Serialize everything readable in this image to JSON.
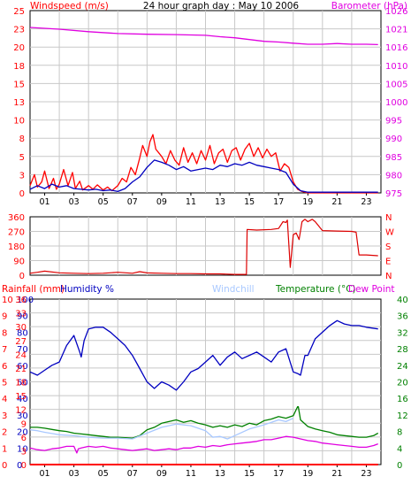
{
  "chart_data": [
    {
      "id": "wind-baro",
      "type": "line",
      "title": "24 hour graph day : May 10 2006",
      "ylabel_left": "Windspeed (m/s)",
      "ylabel_right": "Barometer (hPa)",
      "left_ticks": [
        "0",
        "3",
        "5",
        "8",
        "10",
        "13",
        "15",
        "18",
        "20",
        "23",
        "25"
      ],
      "left_range": [
        0,
        25
      ],
      "right_ticks": [
        "975",
        "980",
        "985",
        "990",
        "995",
        "1000",
        "1005",
        "1010",
        "1016",
        "1021",
        "1026"
      ],
      "right_range": [
        975,
        1026
      ],
      "x_ticks": [
        "01",
        "03",
        "05",
        "07",
        "09",
        "11",
        "13",
        "15",
        "17",
        "19",
        "21",
        "23"
      ],
      "x_range": [
        0,
        24
      ],
      "grid": true,
      "series": [
        {
          "name": "Barometer",
          "axis": "right",
          "color": "#e000e0",
          "x": [
            0,
            2,
            4,
            6,
            8,
            10,
            12,
            13,
            14,
            15,
            16,
            17,
            18,
            19,
            20,
            21,
            22,
            23,
            23.8
          ],
          "y": [
            1021.3,
            1020.8,
            1020.1,
            1019.6,
            1019.4,
            1019.3,
            1019.1,
            1018.7,
            1018.4,
            1017.9,
            1017.4,
            1017.2,
            1016.9,
            1016.6,
            1016.6,
            1016.8,
            1016.6,
            1016.6,
            1016.5
          ]
        },
        {
          "name": "Wind gust",
          "axis": "left",
          "color": "#ff0000",
          "x": [
            0,
            0.3,
            0.5,
            0.8,
            1.0,
            1.3,
            1.6,
            1.8,
            2.0,
            2.3,
            2.6,
            2.9,
            3.1,
            3.4,
            3.6,
            4.0,
            4.3,
            4.6,
            5.0,
            5.3,
            5.6,
            6.0,
            6.3,
            6.6,
            6.9,
            7.2,
            7.5,
            7.7,
            8.0,
            8.2,
            8.4,
            8.6,
            8.8,
            9.0,
            9.3,
            9.6,
            9.9,
            10.2,
            10.5,
            10.8,
            11.1,
            11.4,
            11.7,
            12.0,
            12.3,
            12.6,
            12.9,
            13.2,
            13.5,
            13.8,
            14.1,
            14.4,
            14.7,
            15.0,
            15.3,
            15.6,
            15.9,
            16.2,
            16.5,
            16.8,
            17.1,
            17.4,
            17.7,
            18.0,
            18.3,
            18.6,
            19.0,
            20,
            21,
            22,
            23,
            23.8
          ],
          "y": [
            1.0,
            2.5,
            0.8,
            1.5,
            3.0,
            0.6,
            2.0,
            0.5,
            1.2,
            3.2,
            1.0,
            2.8,
            0.6,
            1.6,
            0.4,
            1.0,
            0.5,
            1.1,
            0.4,
            0.8,
            0.3,
            1.0,
            2.0,
            1.5,
            3.5,
            2.5,
            4.8,
            6.5,
            5.0,
            7.0,
            8.0,
            6.0,
            5.5,
            5.0,
            4.0,
            5.8,
            4.5,
            3.8,
            6.2,
            4.2,
            5.5,
            4.0,
            5.8,
            4.5,
            6.5,
            4.0,
            5.5,
            6.0,
            4.2,
            5.8,
            6.2,
            4.5,
            6.0,
            6.8,
            5.0,
            6.2,
            4.8,
            6.0,
            5.0,
            5.5,
            3.0,
            4.0,
            3.5,
            1.5,
            0.5,
            0.2,
            0,
            0,
            0,
            0,
            0,
            0
          ]
        },
        {
          "name": "Wind speed",
          "axis": "left",
          "color": "#0000c0",
          "x": [
            0,
            0.5,
            1.0,
            1.5,
            2.0,
            2.5,
            3.0,
            3.5,
            4.0,
            4.5,
            5.0,
            5.5,
            6.0,
            6.5,
            7.0,
            7.5,
            8.0,
            8.5,
            9.0,
            9.5,
            10.0,
            10.5,
            11.0,
            11.5,
            12.0,
            12.5,
            13.0,
            13.5,
            14.0,
            14.5,
            15.0,
            15.5,
            16.0,
            16.5,
            17.0,
            17.5,
            18.0,
            18.5,
            19.0,
            20,
            21,
            22,
            23,
            23.8
          ],
          "y": [
            0.5,
            1.0,
            0.6,
            1.2,
            0.8,
            1.0,
            0.6,
            0.5,
            0.4,
            0.5,
            0.3,
            0.4,
            0.2,
            0.6,
            1.5,
            2.2,
            3.5,
            4.5,
            4.2,
            3.8,
            3.2,
            3.6,
            3.0,
            3.2,
            3.4,
            3.2,
            3.8,
            3.6,
            4.0,
            3.8,
            4.2,
            3.8,
            3.6,
            3.4,
            3.2,
            2.8,
            1.2,
            0.3,
            0.1,
            0.1,
            0.1,
            0.1,
            0.1,
            0.1
          ]
        }
      ]
    },
    {
      "id": "wind-dir",
      "type": "line",
      "left_ticks": [
        "0",
        "90",
        "180",
        "270",
        "360"
      ],
      "left_range": [
        0,
        360
      ],
      "right_ticks": [
        "N",
        "E",
        "S",
        "W",
        "N"
      ],
      "grid": true,
      "series": [
        {
          "name": "Wind direction",
          "axis": "left",
          "color": "#dd0000",
          "x": [
            0,
            0.5,
            1.0,
            2.0,
            3.0,
            4.0,
            5.0,
            6.0,
            7.0,
            7.5,
            8.0,
            9.0,
            10.0,
            11.0,
            12.0,
            13.0,
            14.0,
            14.8,
            14.85,
            15.5,
            16.5,
            17.0,
            17.3,
            17.5,
            17.6,
            17.8,
            18.0,
            18.2,
            18.4,
            18.6,
            18.8,
            19.0,
            19.3,
            19.5,
            20.0,
            21.0,
            22.0,
            22.3,
            22.5,
            23.0,
            23.8
          ],
          "y": [
            12,
            18,
            25,
            15,
            12,
            10,
            12,
            18,
            12,
            22,
            14,
            12,
            10,
            10,
            8,
            8,
            5,
            5,
            282,
            278,
            282,
            288,
            330,
            325,
            340,
            48,
            250,
            260,
            220,
            330,
            345,
            330,
            345,
            330,
            275,
            272,
            270,
            265,
            125,
            125,
            120
          ]
        }
      ]
    },
    {
      "id": "temp-hum",
      "type": "line",
      "legend": [
        "Rainfall (mm)",
        "Humidity %",
        "Windchill",
        "Temperature (°C)",
        "Dew Point"
      ],
      "rain_ticks": [
        "0",
        "1",
        "2",
        "3",
        "4",
        "5",
        "6",
        "7",
        "8",
        "9",
        "10"
      ],
      "rain_range": [
        0,
        10
      ],
      "humidity_ticks": [
        "0",
        "10",
        "20",
        "30",
        "40",
        "50",
        "60",
        "70",
        "80",
        "90",
        "100"
      ],
      "humidity_range": [
        0,
        100
      ],
      "left_ticks": [
        "0",
        "3",
        "6",
        "9",
        "12",
        "15",
        "18",
        "21",
        "24",
        "27",
        "30",
        "33",
        "36"
      ],
      "left_range": [
        0,
        36
      ],
      "right_ticks": [
        "0",
        "4",
        "8",
        "12",
        "16",
        "20",
        "24",
        "28",
        "32",
        "36",
        "40"
      ],
      "right_range": [
        0,
        40
      ],
      "grid": true,
      "series": [
        {
          "name": "Humidity %",
          "axis": "humidity",
          "color": "#0000c0",
          "x": [
            0,
            0.5,
            1.0,
            1.5,
            2.0,
            2.5,
            3.0,
            3.4,
            3.5,
            3.7,
            4.0,
            4.5,
            5.0,
            5.5,
            6.0,
            6.5,
            7.0,
            7.5,
            8.0,
            8.5,
            9.0,
            9.5,
            10.0,
            10.5,
            11.0,
            11.5,
            12.0,
            12.5,
            13.0,
            13.5,
            14.0,
            14.5,
            15.0,
            15.5,
            16.0,
            16.5,
            17.0,
            17.5,
            18.0,
            18.3,
            18.5,
            18.8,
            19.0,
            19.5,
            20.0,
            20.5,
            21.0,
            21.5,
            22.0,
            22.5,
            23.0,
            23.8
          ],
          "y": [
            56,
            54,
            57,
            60,
            62,
            72,
            78,
            68,
            65,
            75,
            82,
            83,
            83,
            80,
            76,
            72,
            66,
            58,
            50,
            46,
            50,
            48,
            45,
            50,
            56,
            58,
            62,
            66,
            60,
            65,
            68,
            64,
            66,
            68,
            65,
            62,
            68,
            70,
            56,
            55,
            54,
            66,
            66,
            76,
            80,
            84,
            87,
            85,
            84,
            84,
            83,
            82
          ]
        },
        {
          "name": "Temperature (°C)",
          "axis": "right",
          "color": "#008000",
          "x": [
            0,
            0.5,
            1.0,
            1.5,
            2.0,
            2.5,
            3.0,
            3.5,
            4.0,
            4.5,
            5.0,
            5.5,
            6.0,
            6.5,
            7.0,
            7.5,
            8.0,
            8.5,
            9.0,
            9.5,
            10.0,
            10.5,
            11.0,
            11.5,
            12.0,
            12.5,
            13.0,
            13.5,
            14.0,
            14.5,
            15.0,
            15.5,
            16.0,
            16.5,
            17.0,
            17.5,
            18.0,
            18.3,
            18.35,
            18.5,
            19.0,
            19.5,
            20.0,
            20.5,
            21.0,
            21.5,
            22.0,
            22.5,
            23.0,
            23.5,
            23.8
          ],
          "y": [
            9,
            9,
            8.8,
            8.5,
            8.2,
            8,
            7.6,
            7.4,
            7.2,
            7,
            6.8,
            6.6,
            6.6,
            6.5,
            6.4,
            7,
            8.4,
            9,
            10,
            10.4,
            10.8,
            10.2,
            10.6,
            10,
            9.6,
            9,
            9.4,
            9,
            9.6,
            9.2,
            10,
            9.6,
            10.6,
            11,
            11.6,
            11.2,
            11.8,
            14,
            14,
            10.8,
            9.2,
            8.6,
            8.2,
            7.8,
            7.2,
            7,
            6.8,
            6.6,
            6.6,
            7,
            7.6
          ]
        },
        {
          "name": "Windchill",
          "axis": "right",
          "color": "#a8c8ff",
          "x": [
            0,
            0.5,
            1.0,
            1.5,
            2.0,
            3.0,
            4.0,
            5.0,
            6.0,
            7.0,
            8.0,
            9.0,
            10.0,
            11.0,
            12.0,
            12.5,
            13.0,
            13.5,
            14.0,
            15.0,
            16.0,
            17.0,
            17.5,
            18.0
          ],
          "y": [
            8.4,
            8.2,
            7.8,
            7.5,
            7.2,
            7,
            6.6,
            6.4,
            6.4,
            6.2,
            7.6,
            9,
            9.8,
            9.4,
            8.2,
            6.6,
            6.8,
            6.2,
            7,
            8.6,
            9.6,
            10.8,
            10.4,
            11.2
          ]
        },
        {
          "name": "Dew Point",
          "axis": "right",
          "color": "#e000e0",
          "x": [
            0,
            0.5,
            1.0,
            1.5,
            2.0,
            2.5,
            3.0,
            3.2,
            3.3,
            3.5,
            4.0,
            4.5,
            5.0,
            5.5,
            6.0,
            6.5,
            7.0,
            7.5,
            8.0,
            8.5,
            9.0,
            9.5,
            10.0,
            10.5,
            11.0,
            11.5,
            12.0,
            12.5,
            13.0,
            13.5,
            14.0,
            14.5,
            15.0,
            15.5,
            16.0,
            16.5,
            17.0,
            17.5,
            18.0,
            18.5,
            19.0,
            19.5,
            20.0,
            20.5,
            21.0,
            21.5,
            22.0,
            22.5,
            23.0,
            23.5,
            23.8
          ],
          "y": [
            4,
            3.6,
            3.4,
            3.8,
            4,
            4.4,
            4.4,
            2.8,
            3.8,
            4,
            4.4,
            4.2,
            4.4,
            4,
            3.8,
            3.6,
            3.4,
            3.6,
            3.8,
            3.4,
            3.6,
            3.8,
            3.6,
            4,
            4,
            4.4,
            4.2,
            4.6,
            4.4,
            4.8,
            5,
            5.2,
            5.4,
            5.6,
            6,
            6,
            6.4,
            6.8,
            6.6,
            6.2,
            5.8,
            5.6,
            5.2,
            5,
            4.8,
            4.6,
            4.4,
            4.2,
            4.2,
            4.6,
            5
          ]
        },
        {
          "name": "Rainfall (mm)",
          "axis": "rain",
          "color": "#ff0000",
          "x": [
            0,
            23.8
          ],
          "y": [
            0,
            0
          ]
        }
      ]
    }
  ]
}
